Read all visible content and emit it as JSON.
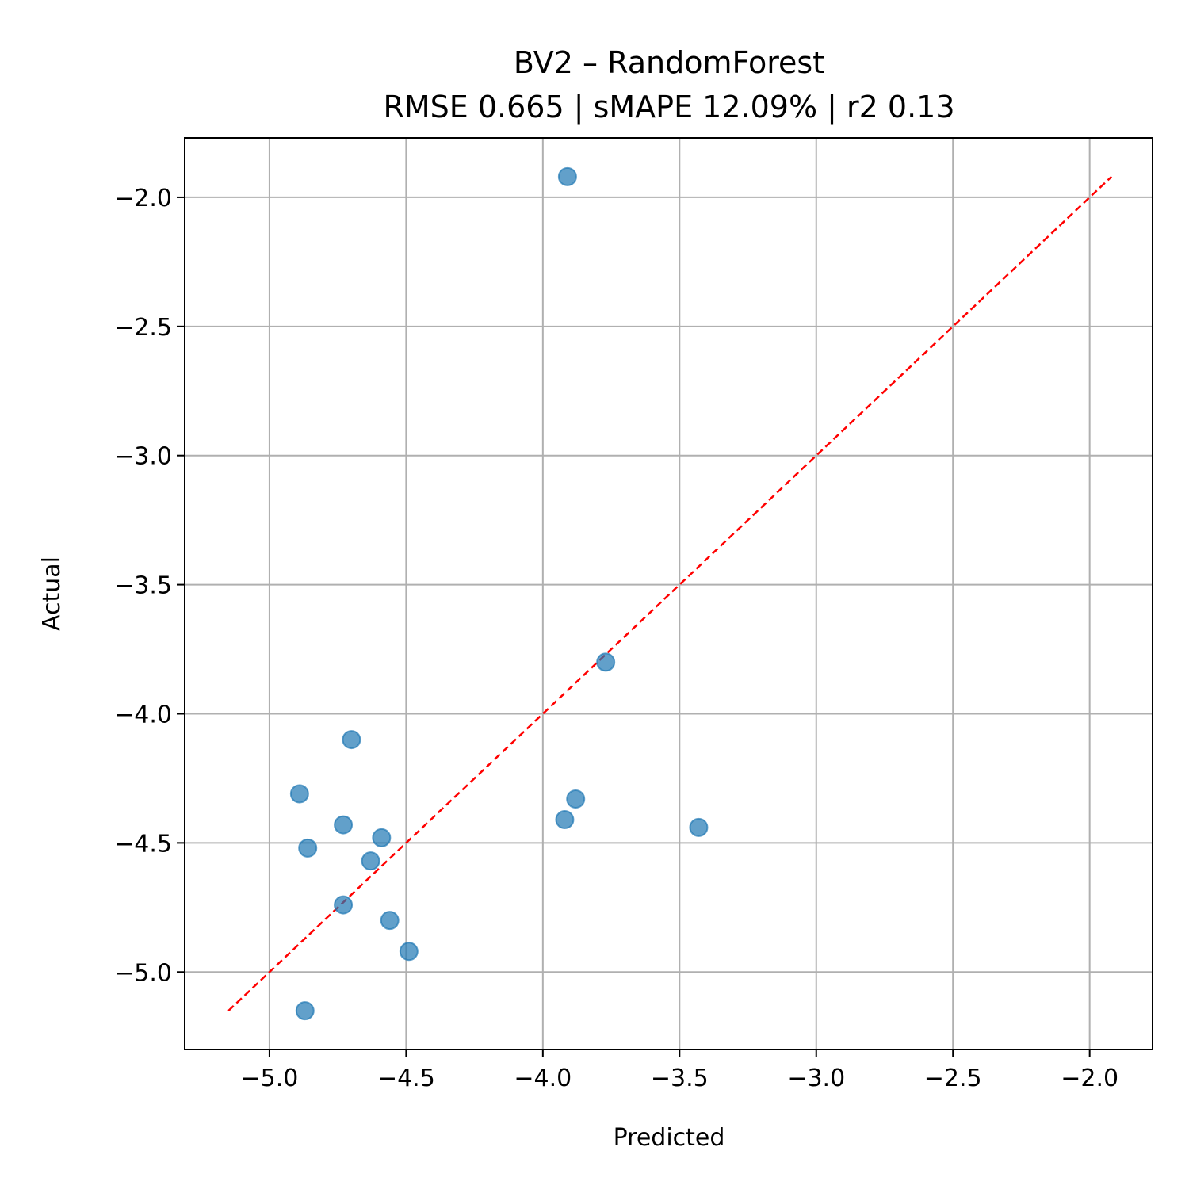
{
  "chart_data": {
    "type": "scatter",
    "title": "BV2 – RandomForest",
    "subtitle": "RMSE 0.665 | sMAPE 12.09%  | r2 0.13",
    "xlabel": "Predicted",
    "ylabel": "Actual",
    "xlim": [
      -5.31,
      -1.77
    ],
    "ylim": [
      -5.3,
      -1.77
    ],
    "xticks": [
      -5.0,
      -4.5,
      -4.0,
      -3.5,
      -3.0,
      -2.5,
      -2.0
    ],
    "yticks": [
      -5.0,
      -4.5,
      -4.0,
      -3.5,
      -3.0,
      -2.5,
      -2.0
    ],
    "xtick_labels": [
      "−5.0",
      "−4.5",
      "−4.0",
      "−3.5",
      "−3.0",
      "−2.5",
      "−2.0"
    ],
    "ytick_labels": [
      "−5.0",
      "−4.5",
      "−4.0",
      "−3.5",
      "−3.0",
      "−2.5",
      "−2.0"
    ],
    "grid": true,
    "series": [
      {
        "points": [
          {
            "x": -3.91,
            "y": -1.92
          },
          {
            "x": -3.77,
            "y": -3.8
          },
          {
            "x": -4.7,
            "y": -4.1
          },
          {
            "x": -4.89,
            "y": -4.31
          },
          {
            "x": -4.73,
            "y": -4.43
          },
          {
            "x": -4.86,
            "y": -4.52
          },
          {
            "x": -4.59,
            "y": -4.48
          },
          {
            "x": -4.63,
            "y": -4.57
          },
          {
            "x": -4.73,
            "y": -4.74
          },
          {
            "x": -4.56,
            "y": -4.8
          },
          {
            "x": -4.49,
            "y": -4.92
          },
          {
            "x": -4.87,
            "y": -5.15
          },
          {
            "x": -3.88,
            "y": -4.33
          },
          {
            "x": -3.92,
            "y": -4.41
          },
          {
            "x": -3.43,
            "y": -4.44
          }
        ],
        "color": "#1f77b4",
        "opacity": 0.7
      }
    ],
    "reference_line": {
      "from": -5.15,
      "to": -1.92,
      "color": "#ff0000",
      "style": "dashed"
    }
  }
}
